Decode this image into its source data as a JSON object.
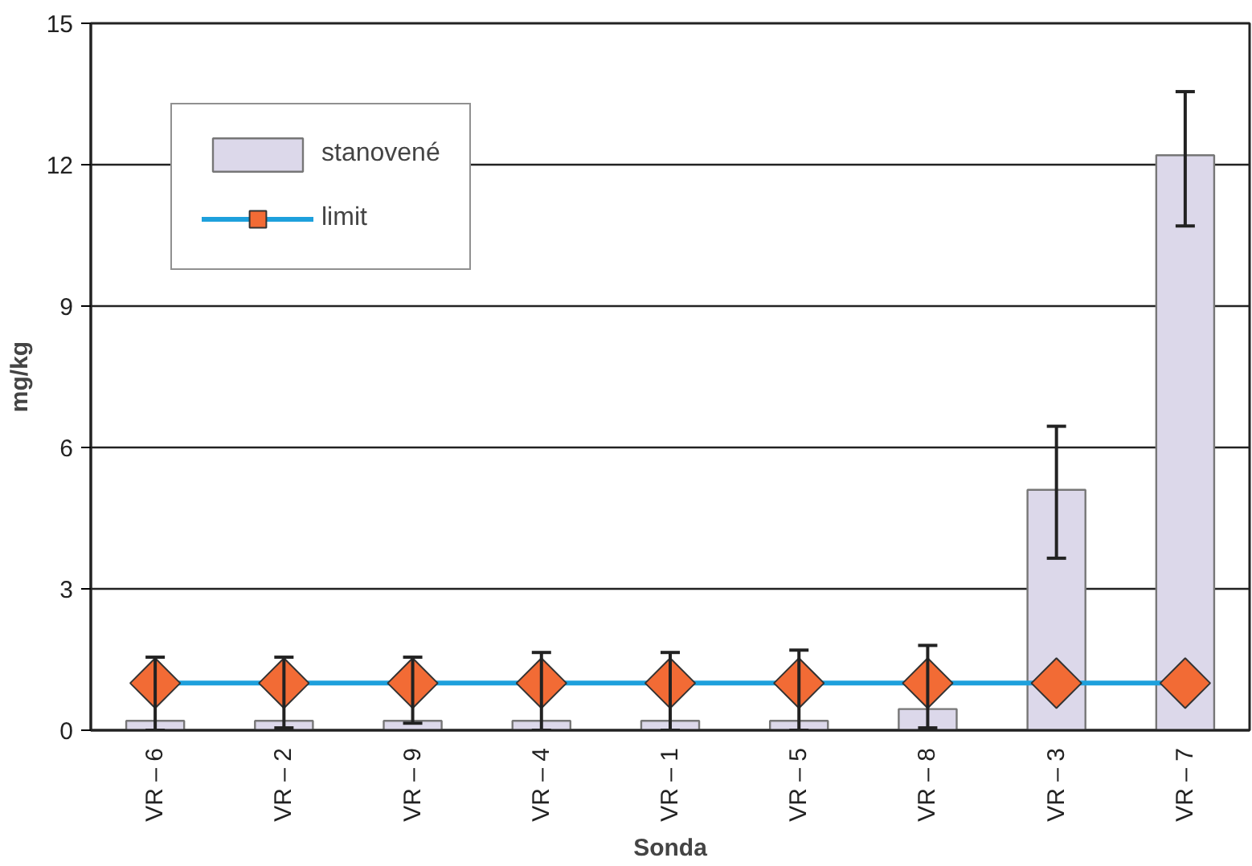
{
  "chart_data": {
    "type": "bar",
    "xlabel": "Sonda",
    "ylabel": "mg/kg",
    "categories": [
      "VR – 6",
      "VR – 2",
      "VR – 9",
      "VR – 4",
      "VR – 1",
      "VR – 5",
      "VR – 8",
      "VR – 3",
      "VR – 7"
    ],
    "series": [
      {
        "name": "stanovené",
        "color": "#dcd8ea",
        "values": [
          0.2,
          0.2,
          0.2,
          0.2,
          0.2,
          0.2,
          0.45,
          5.1,
          12.2
        ],
        "errors": [
          [
            0,
            1.55
          ],
          [
            0.05,
            1.55
          ],
          [
            0.15,
            1.55
          ],
          [
            0,
            1.65
          ],
          [
            0,
            1.65
          ],
          [
            0,
            1.7
          ],
          [
            0.05,
            1.8
          ],
          [
            3.65,
            6.45
          ],
          [
            10.7,
            13.55
          ]
        ]
      },
      {
        "name": "limit",
        "type": "line",
        "color": "#1ea0dc",
        "marker": "diamond",
        "values": [
          1,
          1,
          1,
          1,
          1,
          1,
          1,
          1,
          1
        ]
      }
    ],
    "ylim": [
      0,
      15
    ],
    "yticks": [
      0,
      3,
      6,
      9,
      12,
      15
    ],
    "grid": "y",
    "legend": "top left"
  }
}
